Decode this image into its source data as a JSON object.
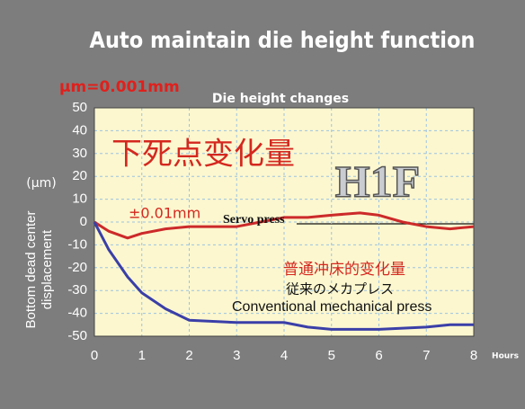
{
  "chart_data": {
    "type": "line",
    "title": "Auto maintain die height function",
    "unit_note": "μm=0.001mm",
    "subtitle": "Die height changes",
    "ylabel": [
      "Bottom dead center",
      "displacement"
    ],
    "ylabel_unit": "(μm)",
    "xlabel": "Hours",
    "annotations": [
      "下死点变化量",
      "H1F",
      "±0.01mm",
      "Servo press",
      "普通冲床的变化量",
      "従来のメカプレス",
      "Conventional mechanical press"
    ],
    "x": [
      0,
      0.3,
      0.7,
      1,
      1.5,
      2,
      3,
      3.5,
      4,
      4.5,
      5,
      5.6,
      6,
      6.5,
      7,
      7.5,
      8
    ],
    "series": [
      {
        "name": "Servo press",
        "color": "#cc2a2a",
        "values": [
          0,
          -4,
          -7,
          -5,
          -3,
          -2,
          -2,
          0,
          2,
          2,
          3,
          4,
          3,
          0,
          -2,
          -3,
          -2
        ]
      },
      {
        "name": "Conventional mechanical press",
        "color": "#3a3fa8",
        "values": [
          0,
          -12,
          -24,
          -31,
          -38,
          -43,
          -44,
          -44,
          -44,
          -46,
          -47,
          -47,
          -47,
          -46.5,
          -46,
          -45,
          -45
        ]
      }
    ],
    "xlim": [
      0,
      8
    ],
    "ylim": [
      -50,
      50
    ],
    "xticks": [
      0,
      1,
      2,
      3,
      4,
      5,
      6,
      7,
      8
    ],
    "yticks": [
      -50,
      -40,
      -30,
      -20,
      -10,
      0,
      10,
      20,
      30,
      40,
      50
    ],
    "grid": true
  }
}
